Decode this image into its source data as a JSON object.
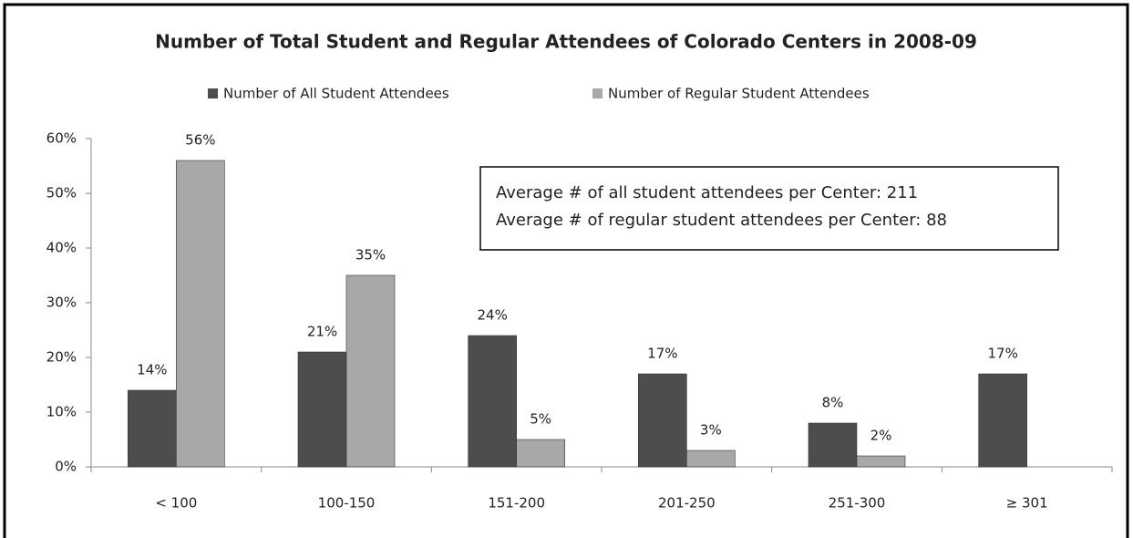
{
  "chart_data": {
    "type": "bar",
    "title": "Number of Total Student and Regular Attendees of Colorado Centers in 2008-09",
    "categories": [
      "< 100",
      "100-150",
      "151-200",
      "201-250",
      "251-300",
      "≥ 301"
    ],
    "series": [
      {
        "name": "Number of All Student Attendees",
        "color": "#4d4d4d",
        "values": [
          14,
          21,
          24,
          17,
          8,
          17
        ],
        "value_labels": [
          "14%",
          "21%",
          "24%",
          "17%",
          "8%",
          "17%"
        ]
      },
      {
        "name": "Number of Regular Student Attendees",
        "color": "#a8a8a8",
        "values": [
          56,
          35,
          5,
          3,
          2,
          null
        ],
        "value_labels": [
          "56%",
          "35%",
          "5%",
          "3%",
          "2%",
          null
        ]
      }
    ],
    "ylim": [
      0,
      60
    ],
    "yticks": [
      {
        "value": 0,
        "label": "0%"
      },
      {
        "value": 10,
        "label": "10%"
      },
      {
        "value": 20,
        "label": "20%"
      },
      {
        "value": 30,
        "label": "30%"
      },
      {
        "value": 40,
        "label": "40%"
      },
      {
        "value": 50,
        "label": "50%"
      },
      {
        "value": 60,
        "label": "60%"
      }
    ],
    "legend": "top",
    "annotations": [
      "Average # of all student attendees per Center: 211",
      "Average # of regular student attendees per Center: 88"
    ]
  }
}
